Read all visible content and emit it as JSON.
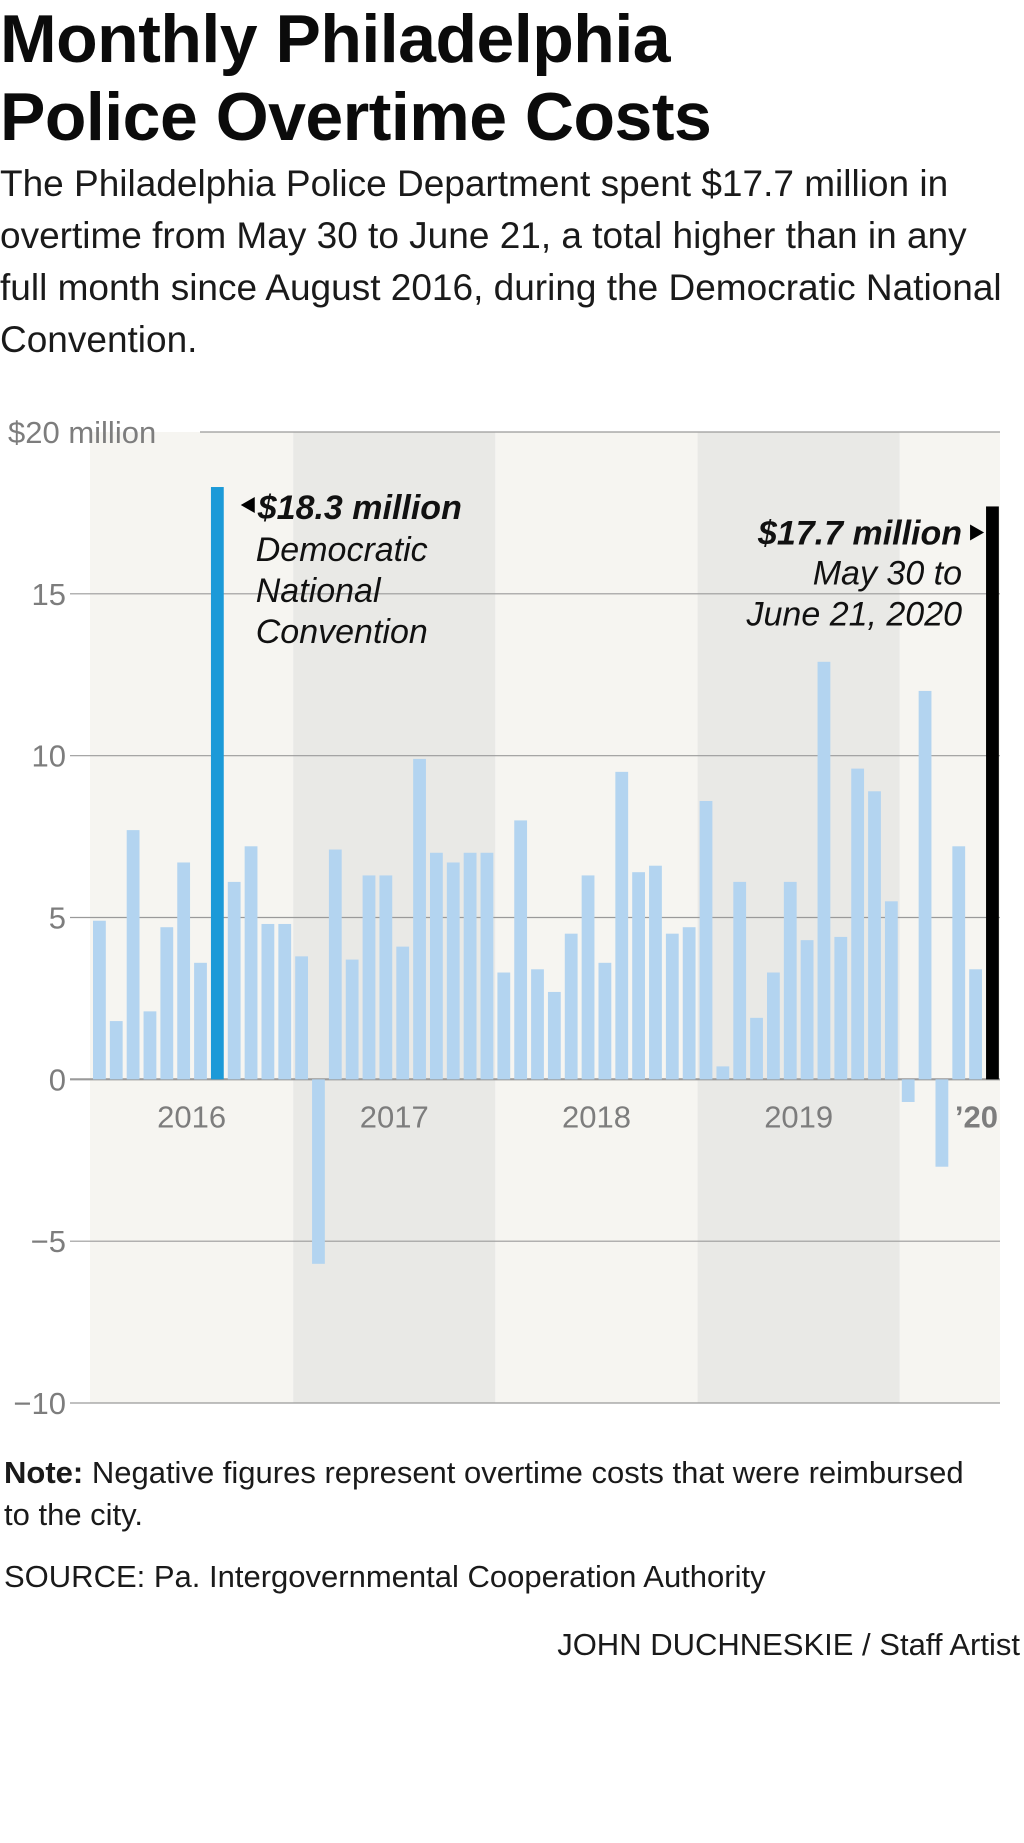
{
  "header": {
    "title_line1": "Monthly Philadelphia",
    "title_line2": "Police Overtime Costs",
    "subtitle": "The Philadelphia Police Department spent $17.7 million in overtime from May 30 to June 21, a total higher than in any full month since August 2016, during the Democratic National Convention."
  },
  "chart_data": {
    "type": "bar",
    "ylim": [
      -10,
      20
    ],
    "yticks": [
      {
        "value": 20,
        "label": "$20 million"
      },
      {
        "value": 15,
        "label": "15"
      },
      {
        "value": 10,
        "label": "10"
      },
      {
        "value": 5,
        "label": "5"
      },
      {
        "value": 0,
        "label": "0"
      },
      {
        "value": -5,
        "label": "−5"
      },
      {
        "value": -10,
        "label": "−10"
      }
    ],
    "year_labels": [
      "2016",
      "2017",
      "2018",
      "2019",
      "’20"
    ],
    "values": [
      4.9,
      1.8,
      7.7,
      2.1,
      4.7,
      6.7,
      3.6,
      18.3,
      6.1,
      7.2,
      4.8,
      4.8,
      3.8,
      -5.7,
      7.1,
      3.7,
      6.3,
      6.3,
      4.1,
      9.9,
      7.0,
      6.7,
      7.0,
      7.0,
      3.3,
      8.0,
      3.4,
      2.7,
      4.5,
      6.3,
      3.6,
      9.5,
      6.4,
      6.6,
      4.5,
      4.7,
      8.6,
      0.4,
      6.1,
      1.9,
      3.3,
      6.1,
      4.3,
      12.9,
      4.4,
      9.6,
      8.9,
      5.5,
      -0.7,
      12.0,
      -2.7,
      7.2,
      3.4,
      17.7
    ],
    "colors": {
      "bar": "#b3d4f0",
      "highlight_dnc": "#1c9ad8",
      "highlight_2020": "#000000",
      "band_light": "#f6f5f1",
      "band_dark": "#e9e9e6",
      "grid": "#9a9a9a",
      "tick_label": "#7d7d7d"
    },
    "annotations": {
      "dnc": {
        "value_label": "$18.3 million",
        "line1": "Democratic",
        "line2": "National",
        "line3": "Convention"
      },
      "recent": {
        "value_label": "$17.7 million",
        "line1": "May 30 to",
        "line2": "June 21, 2020"
      }
    }
  },
  "footer": {
    "note_label": "Note:",
    "note_text": " Negative figures represent overtime costs that were reimbursed to the city.",
    "source": "SOURCE: Pa. Intergovernmental Cooperation Authority",
    "credit": "JOHN DUCHNESKIE / Staff Artist"
  }
}
